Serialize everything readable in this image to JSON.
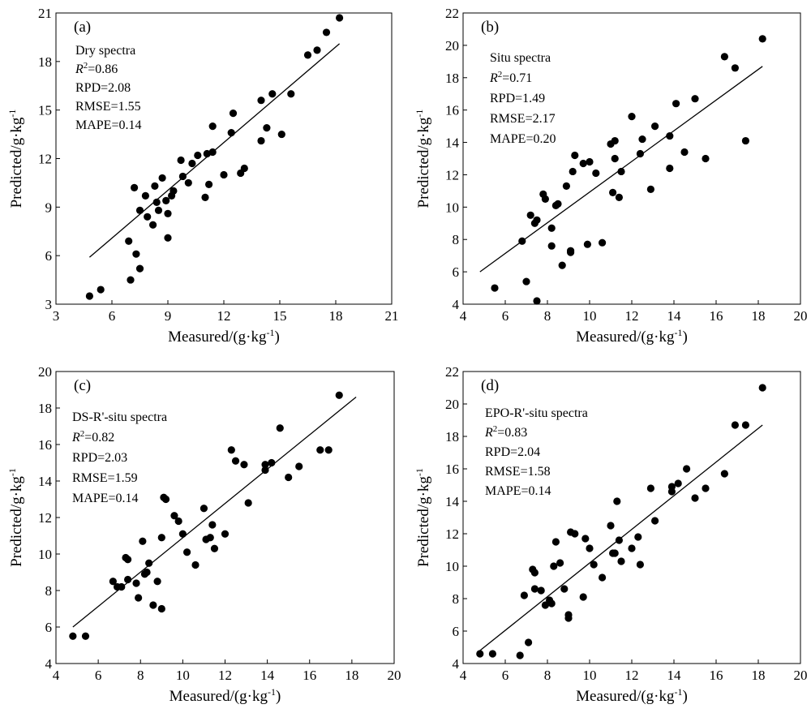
{
  "chart_data": [
    {
      "type": "scatter",
      "panel_label": "(a)",
      "title": "Dry spectra",
      "xlabel": "Measured/(g·kg-1)",
      "ylabel": "Predicted/g·kg-1",
      "xlim": [
        3,
        21
      ],
      "ylim": [
        3,
        21
      ],
      "xticks": [
        "3",
        "6",
        "9",
        "12",
        "15",
        "18",
        "21"
      ],
      "yticks": [
        "3",
        "6",
        "9",
        "12",
        "15",
        "18",
        "21"
      ],
      "stats": {
        "r2": "=0.86",
        "rpd": "RPD=2.08",
        "rmse": "RMSE=1.55",
        "mape": "MAPE=0.14"
      },
      "fit_line": {
        "x": [
          4.8,
          18.2
        ],
        "y": [
          5.9,
          19.1
        ]
      },
      "points": [
        [
          4.8,
          3.5
        ],
        [
          5.4,
          3.9
        ],
        [
          6.9,
          6.9
        ],
        [
          7.0,
          4.5
        ],
        [
          7.3,
          6.1
        ],
        [
          7.2,
          10.2
        ],
        [
          7.5,
          5.2
        ],
        [
          7.5,
          8.8
        ],
        [
          7.8,
          9.7
        ],
        [
          7.9,
          8.4
        ],
        [
          8.2,
          7.9
        ],
        [
          8.3,
          10.3
        ],
        [
          8.4,
          9.3
        ],
        [
          8.5,
          8.8
        ],
        [
          8.7,
          10.8
        ],
        [
          8.9,
          9.4
        ],
        [
          9.0,
          8.6
        ],
        [
          9.0,
          7.1
        ],
        [
          9.2,
          9.7
        ],
        [
          9.3,
          10.0
        ],
        [
          9.7,
          11.9
        ],
        [
          9.8,
          10.9
        ],
        [
          10.1,
          10.5
        ],
        [
          10.3,
          11.7
        ],
        [
          10.6,
          12.2
        ],
        [
          11.0,
          9.6
        ],
        [
          11.1,
          12.3
        ],
        [
          11.2,
          10.4
        ],
        [
          11.4,
          12.4
        ],
        [
          11.4,
          14.0
        ],
        [
          12.0,
          11.0
        ],
        [
          12.4,
          13.6
        ],
        [
          12.5,
          14.8
        ],
        [
          12.9,
          11.1
        ],
        [
          13.1,
          11.4
        ],
        [
          14.0,
          15.6
        ],
        [
          14.0,
          13.1
        ],
        [
          14.3,
          13.9
        ],
        [
          14.6,
          16.0
        ],
        [
          15.1,
          13.5
        ],
        [
          15.6,
          16.0
        ],
        [
          16.5,
          18.4
        ],
        [
          17.0,
          18.7
        ],
        [
          17.5,
          19.8
        ],
        [
          18.2,
          20.7
        ]
      ]
    },
    {
      "type": "scatter",
      "panel_label": "(b)",
      "title": "Situ spectra",
      "xlabel": "Measured/(g·kg-1)",
      "ylabel": "Predicted/g·kg-1",
      "xlim": [
        4,
        20
      ],
      "ylim": [
        4,
        22
      ],
      "xticks": [
        "4",
        "6",
        "8",
        "10",
        "12",
        "14",
        "16",
        "18",
        "20"
      ],
      "yticks": [
        "4",
        "6",
        "8",
        "10",
        "12",
        "14",
        "16",
        "18",
        "20",
        "22"
      ],
      "stats": {
        "r2": "=0.71",
        "rpd": "RPD=1.49",
        "rmse": "RMSE=2.17",
        "mape": "MAPE=0.20"
      },
      "fit_line": {
        "x": [
          4.8,
          18.2
        ],
        "y": [
          6.0,
          18.7
        ]
      },
      "points": [
        [
          5.5,
          5.0
        ],
        [
          6.8,
          7.9
        ],
        [
          7.0,
          5.4
        ],
        [
          7.2,
          9.5
        ],
        [
          7.4,
          9.0
        ],
        [
          7.5,
          9.2
        ],
        [
          7.5,
          4.2
        ],
        [
          7.8,
          10.8
        ],
        [
          7.9,
          10.5
        ],
        [
          8.2,
          8.7
        ],
        [
          8.2,
          7.6
        ],
        [
          8.4,
          10.1
        ],
        [
          8.5,
          10.2
        ],
        [
          8.7,
          6.4
        ],
        [
          8.9,
          11.3
        ],
        [
          9.1,
          7.2
        ],
        [
          9.1,
          7.3
        ],
        [
          9.2,
          12.2
        ],
        [
          9.3,
          13.2
        ],
        [
          9.7,
          12.7
        ],
        [
          9.9,
          7.7
        ],
        [
          10.0,
          12.8
        ],
        [
          10.3,
          12.1
        ],
        [
          10.6,
          7.8
        ],
        [
          11.0,
          13.9
        ],
        [
          11.1,
          10.9
        ],
        [
          11.2,
          13.0
        ],
        [
          11.2,
          14.1
        ],
        [
          11.4,
          10.6
        ],
        [
          11.5,
          12.2
        ],
        [
          12.0,
          15.6
        ],
        [
          12.4,
          13.3
        ],
        [
          12.5,
          14.2
        ],
        [
          12.9,
          11.1
        ],
        [
          13.1,
          15.0
        ],
        [
          13.8,
          14.4
        ],
        [
          13.8,
          12.4
        ],
        [
          14.1,
          16.4
        ],
        [
          14.5,
          13.4
        ],
        [
          15.0,
          16.7
        ],
        [
          15.5,
          13.0
        ],
        [
          16.4,
          19.3
        ],
        [
          16.9,
          18.6
        ],
        [
          17.4,
          14.1
        ],
        [
          18.2,
          20.4
        ]
      ]
    },
    {
      "type": "scatter",
      "panel_label": "(c)",
      "title": "DS-R'-situ spectra",
      "xlabel": "Measured/(g·kg-1)",
      "ylabel": "Predicted/g·kg-1",
      "xlim": [
        4,
        20
      ],
      "ylim": [
        4,
        20
      ],
      "xticks": [
        "4",
        "6",
        "8",
        "10",
        "12",
        "14",
        "16",
        "18",
        "20"
      ],
      "yticks": [
        "4",
        "6",
        "8",
        "10",
        "12",
        "14",
        "16",
        "18",
        "20"
      ],
      "stats": {
        "r2": "=0.82",
        "rpd": "RPD=2.03",
        "rmse": "RMSE=1.59",
        "mape": "MAPE=0.14"
      },
      "fit_line": {
        "x": [
          4.8,
          18.2
        ],
        "y": [
          6.0,
          18.6
        ]
      },
      "points": [
        [
          4.8,
          5.5
        ],
        [
          5.4,
          5.5
        ],
        [
          6.7,
          8.5
        ],
        [
          6.9,
          8.2
        ],
        [
          7.1,
          8.2
        ],
        [
          7.3,
          9.8
        ],
        [
          7.4,
          9.7
        ],
        [
          7.4,
          8.6
        ],
        [
          7.8,
          8.4
        ],
        [
          7.9,
          7.6
        ],
        [
          8.1,
          10.7
        ],
        [
          8.2,
          8.9
        ],
        [
          8.3,
          9.0
        ],
        [
          8.4,
          9.5
        ],
        [
          8.6,
          7.2
        ],
        [
          8.8,
          8.5
        ],
        [
          9.0,
          10.9
        ],
        [
          9.0,
          7.0
        ],
        [
          9.1,
          13.1
        ],
        [
          9.2,
          13.0
        ],
        [
          9.6,
          12.1
        ],
        [
          9.8,
          11.8
        ],
        [
          10.0,
          11.1
        ],
        [
          10.2,
          10.1
        ],
        [
          10.6,
          9.4
        ],
        [
          11.0,
          12.5
        ],
        [
          11.1,
          10.8
        ],
        [
          11.3,
          10.9
        ],
        [
          11.4,
          11.6
        ],
        [
          11.5,
          10.3
        ],
        [
          12.0,
          11.1
        ],
        [
          12.3,
          15.7
        ],
        [
          12.5,
          15.1
        ],
        [
          12.9,
          14.9
        ],
        [
          13.1,
          12.8
        ],
        [
          13.9,
          14.6
        ],
        [
          13.9,
          14.9
        ],
        [
          14.2,
          15.0
        ],
        [
          14.6,
          16.9
        ],
        [
          15.0,
          14.2
        ],
        [
          15.5,
          14.8
        ],
        [
          16.5,
          15.7
        ],
        [
          16.9,
          15.7
        ],
        [
          17.4,
          18.7
        ]
      ]
    },
    {
      "type": "scatter",
      "panel_label": "(d)",
      "title": "EPO-R'-situ spectra",
      "xlabel": "Measured/(g·kg-1)",
      "ylabel": "Predicted/g·kg-1",
      "xlim": [
        4,
        20
      ],
      "ylim": [
        4,
        22
      ],
      "xticks": [
        "4",
        "6",
        "8",
        "10",
        "12",
        "14",
        "16",
        "18",
        "20"
      ],
      "yticks": [
        "4",
        "6",
        "8",
        "10",
        "12",
        "14",
        "16",
        "18",
        "20",
        "22"
      ],
      "stats": {
        "r2": "=0.83",
        "rpd": "RPD=2.04",
        "rmse": "RMSE=1.58",
        "mape": "MAPE=0.14"
      },
      "fit_line": {
        "x": [
          4.8,
          18.2
        ],
        "y": [
          4.8,
          18.7
        ]
      },
      "points": [
        [
          4.8,
          4.6
        ],
        [
          5.4,
          4.6
        ],
        [
          6.7,
          4.5
        ],
        [
          6.9,
          8.2
        ],
        [
          7.1,
          5.3
        ],
        [
          7.3,
          9.8
        ],
        [
          7.4,
          9.6
        ],
        [
          7.4,
          8.6
        ],
        [
          7.7,
          8.5
        ],
        [
          7.9,
          7.6
        ],
        [
          8.1,
          7.9
        ],
        [
          8.2,
          7.7
        ],
        [
          8.3,
          10.0
        ],
        [
          8.4,
          11.5
        ],
        [
          8.6,
          10.2
        ],
        [
          8.8,
          8.6
        ],
        [
          9.0,
          7.0
        ],
        [
          9.0,
          6.8
        ],
        [
          9.1,
          12.1
        ],
        [
          9.3,
          12.0
        ],
        [
          9.7,
          8.1
        ],
        [
          9.8,
          11.7
        ],
        [
          10.0,
          11.1
        ],
        [
          10.2,
          10.1
        ],
        [
          10.6,
          9.3
        ],
        [
          11.0,
          12.5
        ],
        [
          11.1,
          10.8
        ],
        [
          11.2,
          10.8
        ],
        [
          11.3,
          14.0
        ],
        [
          11.4,
          11.6
        ],
        [
          11.5,
          10.3
        ],
        [
          12.0,
          11.1
        ],
        [
          12.3,
          11.8
        ],
        [
          12.4,
          10.1
        ],
        [
          12.9,
          14.8
        ],
        [
          13.1,
          12.8
        ],
        [
          13.9,
          14.6
        ],
        [
          13.9,
          14.9
        ],
        [
          14.2,
          15.1
        ],
        [
          14.6,
          16.0
        ],
        [
          15.0,
          14.2
        ],
        [
          15.5,
          14.8
        ],
        [
          16.4,
          15.7
        ],
        [
          16.9,
          18.7
        ],
        [
          17.4,
          18.7
        ],
        [
          18.2,
          21.0
        ]
      ]
    }
  ]
}
